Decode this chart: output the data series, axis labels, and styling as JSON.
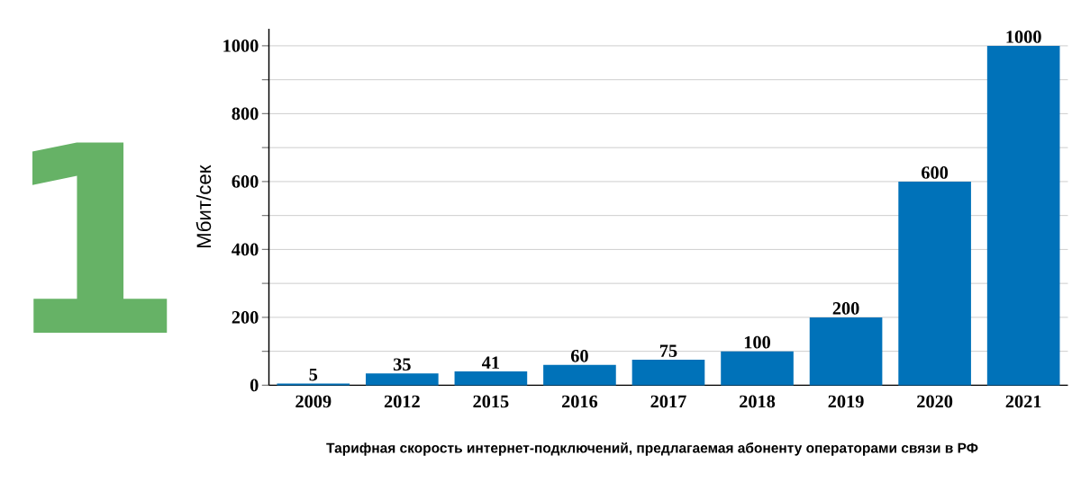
{
  "chart_data": {
    "type": "bar",
    "ylabel": "Мбит/сек",
    "categories": [
      "2009",
      "2012",
      "2015",
      "2016",
      "2017",
      "2018",
      "2019",
      "2020",
      "2021"
    ],
    "values": [
      5,
      35,
      41,
      60,
      75,
      100,
      200,
      600,
      1000
    ],
    "color": "#0072b9",
    "data_labels": true,
    "grid": "y",
    "ylim": [
      0,
      1050
    ],
    "yticks": [
      0,
      {
        "value": 100,
        "label": null
      },
      200,
      {
        "value": 300,
        "label": null
      },
      400,
      {
        "value": 500,
        "label": null
      },
      600,
      {
        "value": 700,
        "label": null
      },
      800,
      {
        "value": 900,
        "label": null
      },
      1000
    ],
    "annotations": [
      "1",
      "Тарифная скорость интернет-подключений, предлагаемая абоненту операторами связи в РФ"
    ]
  }
}
